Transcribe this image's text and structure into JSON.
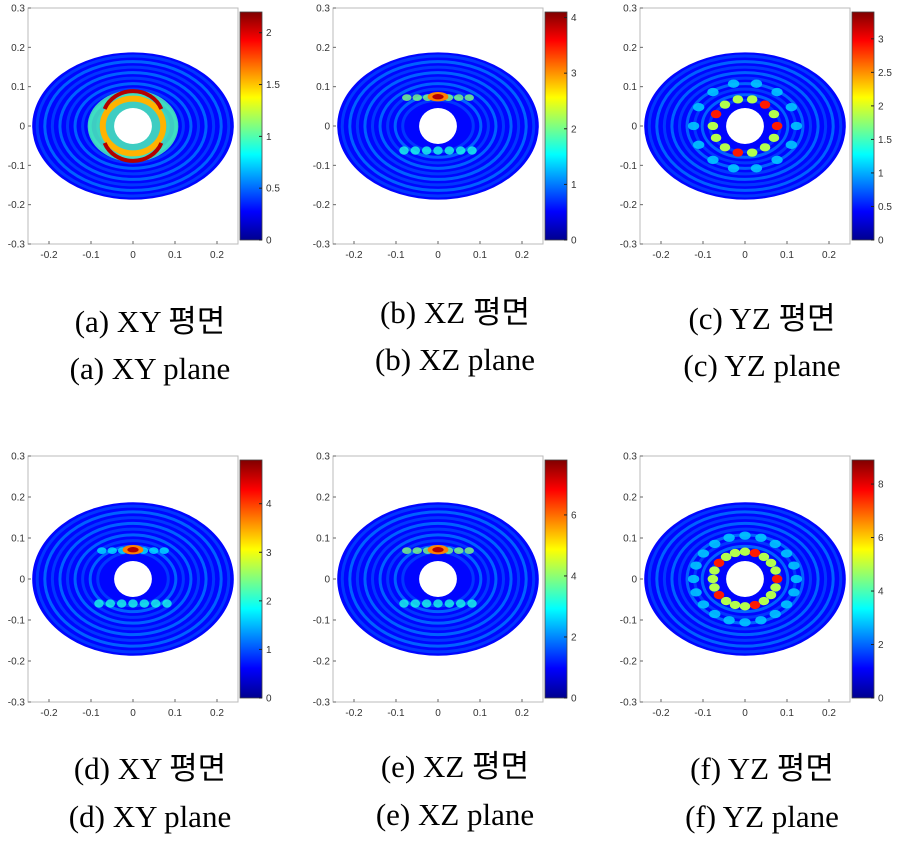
{
  "colormap": [
    "#00008f",
    "#0000ff",
    "#0080ff",
    "#00ffff",
    "#80ff80",
    "#ffff00",
    "#ff8000",
    "#ff0000",
    "#800000"
  ],
  "chart_data": [
    {
      "type": "heatmap",
      "id": "a",
      "caption_ko": "(a) XY 평면",
      "caption_en": "(a) XY plane",
      "xlim": [
        -0.25,
        0.25
      ],
      "ylim": [
        -0.3,
        0.3
      ],
      "xticks": [
        "-0.2",
        "-0.1",
        "0",
        "0.1",
        "0.2"
      ],
      "yticks": [
        "0.3",
        "0.2",
        "0.1",
        "0",
        "-0.1",
        "-0.2",
        "-0.3"
      ],
      "colorbar_ticks": [
        "2",
        "1.5",
        "1",
        "0.5",
        "0"
      ],
      "colorbar_range": [
        0,
        2.2
      ],
      "pattern": "ring-hotspots",
      "outer_radius": 0.24,
      "inner_radius": 0.045
    },
    {
      "type": "heatmap",
      "id": "b",
      "caption_ko": "(b) XZ 평면",
      "caption_en": "(b) XZ plane",
      "xlim": [
        -0.25,
        0.25
      ],
      "ylim": [
        -0.3,
        0.3
      ],
      "xticks": [
        "-0.2",
        "-0.1",
        "0",
        "0.1",
        "0.2"
      ],
      "yticks": [
        "0.3",
        "0.2",
        "0.1",
        "0",
        "-0.1",
        "-0.2",
        "-0.3"
      ],
      "colorbar_ticks": [
        "4",
        "3",
        "2",
        "1",
        "0"
      ],
      "colorbar_range": [
        0,
        4.1
      ],
      "pattern": "top-hotspot",
      "outer_radius": 0.24,
      "inner_radius": 0.045
    },
    {
      "type": "heatmap",
      "id": "c",
      "caption_ko": "(c) YZ 평면",
      "caption_en": "(c) YZ plane",
      "xlim": [
        -0.25,
        0.25
      ],
      "ylim": [
        -0.3,
        0.3
      ],
      "xticks": [
        "-0.2",
        "-0.1",
        "0",
        "0.1",
        "0.2"
      ],
      "yticks": [
        "0.3",
        "0.2",
        "0.1",
        "0",
        "-0.1",
        "-0.2",
        "-0.3"
      ],
      "colorbar_ticks": [
        "3",
        "2.5",
        "2",
        "1.5",
        "1",
        "0.5",
        "0"
      ],
      "colorbar_range": [
        0,
        3.4
      ],
      "pattern": "radial-lobes",
      "outer_radius": 0.24,
      "inner_radius": 0.045
    },
    {
      "type": "heatmap",
      "id": "d",
      "caption_ko": "(d) XY 평면",
      "caption_en": "(d) XY plane",
      "xlim": [
        -0.25,
        0.25
      ],
      "ylim": [
        -0.3,
        0.3
      ],
      "xticks": [
        "-0.2",
        "-0.1",
        "0",
        "0.1",
        "0.2"
      ],
      "yticks": [
        "0.3",
        "0.2",
        "0.1",
        "0",
        "-0.1",
        "-0.2",
        "-0.3"
      ],
      "colorbar_ticks": [
        "4",
        "3",
        "2",
        "1",
        "0"
      ],
      "colorbar_range": [
        0,
        4.9
      ],
      "pattern": "top-hotspot-weak",
      "outer_radius": 0.24,
      "inner_radius": 0.045
    },
    {
      "type": "heatmap",
      "id": "e",
      "caption_ko": "(e) XZ 평면",
      "caption_en": "(e) XZ plane",
      "xlim": [
        -0.25,
        0.25
      ],
      "ylim": [
        -0.3,
        0.3
      ],
      "xticks": [
        "-0.2",
        "-0.1",
        "0",
        "0.1",
        "0.2"
      ],
      "yticks": [
        "0.3",
        "0.2",
        "0.1",
        "0",
        "-0.1",
        "-0.2",
        "-0.3"
      ],
      "colorbar_ticks": [
        "6",
        "4",
        "2",
        "0"
      ],
      "colorbar_range": [
        0,
        7.8
      ],
      "pattern": "top-hotspot",
      "outer_radius": 0.24,
      "inner_radius": 0.045
    },
    {
      "type": "heatmap",
      "id": "f",
      "caption_ko": "(f) YZ 평면",
      "caption_en": "(f) YZ plane",
      "xlim": [
        -0.25,
        0.25
      ],
      "ylim": [
        -0.3,
        0.3
      ],
      "xticks": [
        "-0.2",
        "-0.1",
        "0",
        "0.1",
        "0.2"
      ],
      "yticks": [
        "0.3",
        "0.2",
        "0.1",
        "0",
        "-0.1",
        "-0.2",
        "-0.3"
      ],
      "colorbar_ticks": [
        "8",
        "6",
        "4",
        "2",
        "0"
      ],
      "colorbar_range": [
        0,
        8.9
      ],
      "pattern": "radial-lobes-strong",
      "outer_radius": 0.24,
      "inner_radius": 0.045
    }
  ]
}
